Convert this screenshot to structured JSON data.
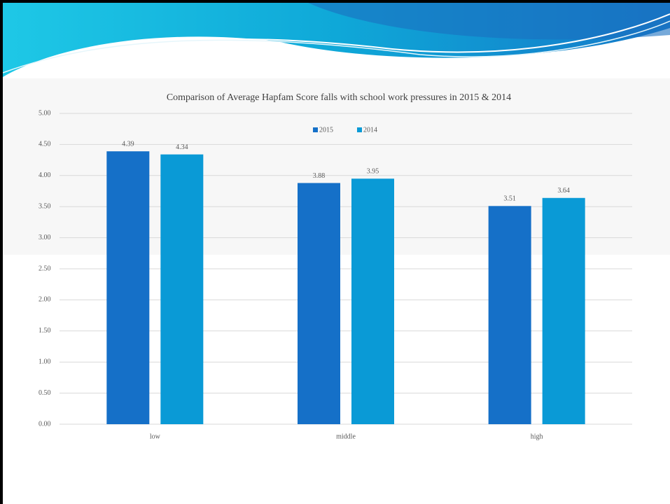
{
  "chart_data": {
    "type": "bar",
    "title": "Comparison of Average Hapfam Score falls with school work pressures in 2015 & 2014",
    "categories": [
      "low",
      "middle",
      "high"
    ],
    "series": [
      {
        "name": "2015",
        "color": "#1570c8",
        "values": [
          4.39,
          3.88,
          3.51
        ]
      },
      {
        "name": "2014",
        "color": "#0a9ad6",
        "values": [
          4.34,
          3.95,
          3.64
        ]
      }
    ],
    "ylim": [
      0,
      5
    ],
    "yticks": [
      {
        "value": 0,
        "label": "0.00"
      },
      {
        "value": 0.5,
        "label": "0.50"
      },
      {
        "value": 1,
        "label": "1.00"
      },
      {
        "value": 1.5,
        "label": "1.50"
      },
      {
        "value": 2,
        "label": "2.00"
      },
      {
        "value": 2.5,
        "label": "2.50"
      },
      {
        "value": 3,
        "label": "3.00"
      },
      {
        "value": 3.5,
        "label": "3.50"
      },
      {
        "value": 4,
        "label": "4.00"
      },
      {
        "value": 4.5,
        "label": "4.50"
      },
      {
        "value": 5,
        "label": "5.00"
      }
    ],
    "grid": true,
    "legend": "top"
  }
}
